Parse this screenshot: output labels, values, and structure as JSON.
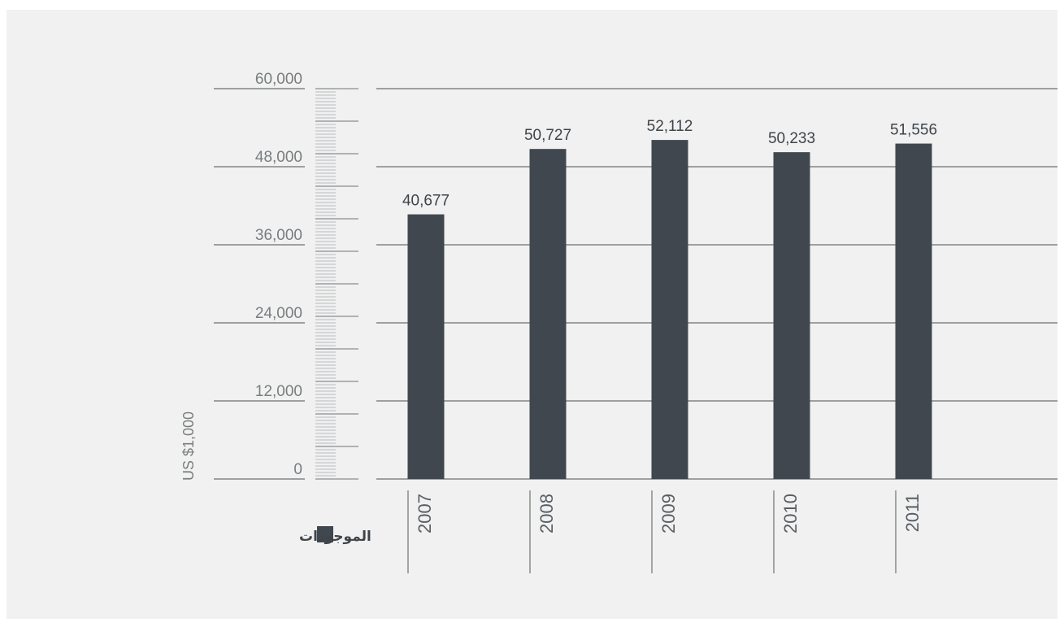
{
  "chart_data": {
    "type": "bar",
    "categories": [
      "2007",
      "2008",
      "2009",
      "2010",
      "2011"
    ],
    "series": [
      {
        "name": "الموجودات",
        "values": [
          40677,
          50727,
          52112,
          50233,
          51556
        ]
      }
    ],
    "value_labels": [
      "40,677",
      "50,727",
      "52,112",
      "50,233",
      "51,556"
    ],
    "ylabel": "US $1,000",
    "ylim": [
      0,
      60000
    ],
    "yticks": [
      0,
      12000,
      24000,
      36000,
      48000,
      60000
    ],
    "ytick_labels": [
      "0",
      "12,000",
      "24,000",
      "36,000",
      "48,000",
      "60,000"
    ],
    "grid": true,
    "legend_position": "bottom-left",
    "colors": {
      "bar": "#41474e",
      "grid": "#4a4e53",
      "background": "#f0f1f0"
    }
  }
}
